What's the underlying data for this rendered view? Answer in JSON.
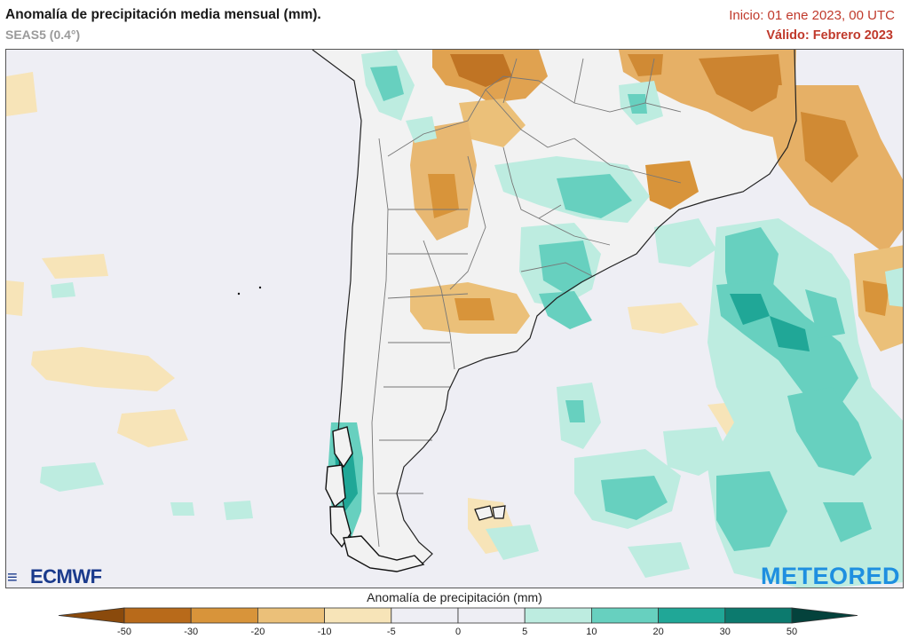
{
  "header": {
    "title": "Anomalía de precipitación media mensual (mm).",
    "model": "SEAS5 (0.4°)",
    "init": "Inicio: 01 ene 2023, 00 UTC",
    "valid": "Válido: Febrero 2023"
  },
  "logos": {
    "left": "ECMWF",
    "right": "METEORED"
  },
  "colorbar": {
    "title": "Anomalía de precipitación (mm)",
    "ticks": [
      "-50",
      "-30",
      "-20",
      "-10",
      "-5",
      "0",
      "5",
      "10",
      "20",
      "30",
      "50"
    ],
    "colors": [
      "#8a4a0c",
      "#b86a1a",
      "#d8943a",
      "#ebc079",
      "#f7e4b8",
      "#eeeef4",
      "#eeeef4",
      "#bdece0",
      "#67d0bf",
      "#20a797",
      "#0c7a6e",
      "#04423c"
    ]
  },
  "map_colors": {
    "ocean": "#eeeef4",
    "land": "#f2f2f2",
    "borders": "#777777",
    "coast": "#222222"
  }
}
